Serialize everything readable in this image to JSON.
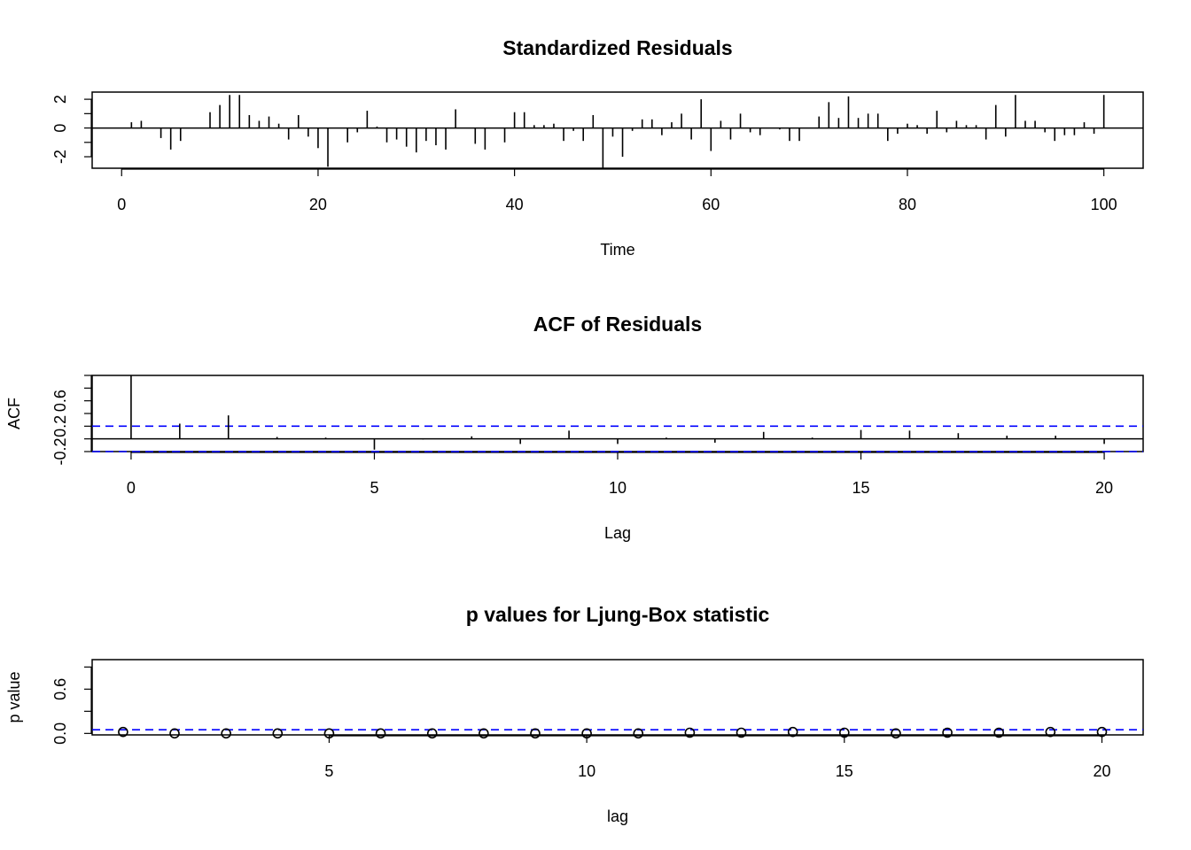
{
  "chart_data": [
    {
      "type": "line",
      "title": "Standardized Residuals",
      "xlabel": "Time",
      "ylabel": "",
      "xlim": [
        -3,
        104
      ],
      "ylim": [
        -2.8,
        2.5
      ],
      "xticks": [
        0,
        20,
        40,
        60,
        80,
        100
      ],
      "yticks": [
        -2,
        0,
        2
      ],
      "x": [
        1,
        2,
        3,
        4,
        5,
        6,
        7,
        8,
        9,
        10,
        11,
        12,
        13,
        14,
        15,
        16,
        17,
        18,
        19,
        20,
        21,
        22,
        23,
        24,
        25,
        26,
        27,
        28,
        29,
        30,
        31,
        32,
        33,
        34,
        35,
        36,
        37,
        38,
        39,
        40,
        41,
        42,
        43,
        44,
        45,
        46,
        47,
        48,
        49,
        50,
        51,
        52,
        53,
        54,
        55,
        56,
        57,
        58,
        59,
        60,
        61,
        62,
        63,
        64,
        65,
        66,
        67,
        68,
        69,
        70,
        71,
        72,
        73,
        74,
        75,
        76,
        77,
        78,
        79,
        80,
        81,
        82,
        83,
        84,
        85,
        86,
        87,
        88,
        89,
        90,
        91,
        92,
        93,
        94,
        95,
        96,
        97,
        98,
        99,
        100
      ],
      "series": [
        {
          "values": [
            0.4,
            0.5,
            0,
            -0.7,
            -1.5,
            -0.9,
            0,
            0,
            1.1,
            1.6,
            2.3,
            2.3,
            0.9,
            0.5,
            0.8,
            0.3,
            -0.8,
            0.9,
            -0.6,
            -1.4,
            -2.7,
            0,
            -1,
            -0.3,
            1.2,
            0.1,
            -1,
            -0.8,
            -1.3,
            -1.7,
            -0.9,
            -1.2,
            -1.5,
            1.3,
            0,
            -1.1,
            -1.5,
            0,
            -1,
            1.1,
            1.1,
            0.2,
            0.2,
            0.3,
            -0.9,
            -0.2,
            -0.9,
            0.9,
            -2.8,
            -0.6,
            -2,
            -0.2,
            0.6,
            0.6,
            -0.5,
            0.4,
            1,
            -0.8,
            2,
            -1.6,
            0.5,
            -0.8,
            1,
            -0.3,
            -0.5,
            0,
            -0.1,
            -0.9,
            -0.9,
            0,
            0.8,
            1.8,
            0.7,
            2.2,
            0.7,
            1,
            1,
            -0.9,
            -0.4,
            0.3,
            0.2,
            -0.4,
            1.2,
            -0.3,
            0.5,
            0.2,
            0.2,
            -0.8,
            1.6,
            -0.6,
            2.3,
            0.5,
            0.5,
            -0.3,
            -0.9,
            -0.5,
            -0.5,
            0.4,
            -0.4,
            2.3
          ]
        }
      ]
    },
    {
      "type": "bar",
      "title": "ACF of Residuals",
      "xlabel": "Lag",
      "ylabel": "ACF",
      "xlim": [
        -0.8,
        20.8
      ],
      "ylim": [
        -0.2,
        1.0
      ],
      "xticks": [
        0,
        5,
        10,
        15,
        20
      ],
      "yticks": [
        -0.2,
        0.2,
        0.6
      ],
      "x": [
        0,
        1,
        2,
        3,
        4,
        5,
        6,
        7,
        8,
        9,
        10,
        11,
        12,
        13,
        14,
        15,
        16,
        17,
        18,
        19,
        20
      ],
      "series": [
        {
          "values": [
            1.0,
            0.24,
            0.37,
            0.03,
            0.02,
            -0.17,
            -0.01,
            0.04,
            -0.08,
            0.13,
            -0.08,
            0.02,
            -0.06,
            0.11,
            0.02,
            0.14,
            0.13,
            0.09,
            0.05,
            0.05,
            -0.08
          ]
        }
      ],
      "ci_bounds": [
        0.2,
        -0.2
      ],
      "ci_color": "#0000ff"
    },
    {
      "type": "scatter",
      "title": "p values for Ljung-Box statistic",
      "xlabel": "lag",
      "ylabel": "p value",
      "xlim": [
        0.4,
        20.8
      ],
      "ylim": [
        -0.02,
        1.0
      ],
      "xticks": [
        5,
        10,
        15,
        20
      ],
      "yticks": [
        0.0,
        0.6
      ],
      "x": [
        1,
        2,
        3,
        4,
        5,
        6,
        7,
        8,
        9,
        10,
        11,
        12,
        13,
        14,
        15,
        16,
        17,
        18,
        19,
        20
      ],
      "series": [
        {
          "values": [
            0.02,
            0.0,
            0.0,
            0.0,
            0.0,
            0.0,
            0.0,
            0.0,
            0.0,
            0.0,
            0.0,
            0.01,
            0.01,
            0.02,
            0.01,
            0.0,
            0.01,
            0.01,
            0.02,
            0.02
          ]
        }
      ],
      "ref_line": 0.05,
      "ref_color": "#0000ff"
    }
  ]
}
